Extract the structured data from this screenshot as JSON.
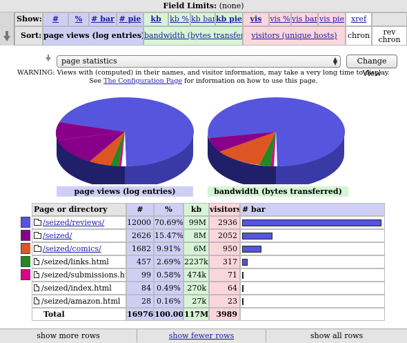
{
  "field_limits": {
    "label": "Field Limits:",
    "value": "(none)"
  },
  "show": {
    "label": "Show:",
    "hits": [
      "#",
      "%",
      "# bar",
      "# pie"
    ],
    "kb": [
      "kb",
      "kb %",
      "kb bar",
      "kb pie"
    ],
    "vis": [
      "vis",
      "vis %",
      "vis bar",
      "vis pie"
    ],
    "xref": "xref"
  },
  "sort": {
    "label": "Sort:",
    "page_views": "page views (log entries)",
    "bandwidth": "bandwidth (bytes transferred)",
    "visitors": "visitors (unique hosts)",
    "chron": "chron",
    "rev_chron_1": "rev",
    "rev_chron_2": "chron"
  },
  "report_select": {
    "value": "page statistics",
    "button": "Change View"
  },
  "warning": {
    "line1": "WARNING: Views with (computed) in their names, and visitor information, may take a very long time to display.",
    "line2_pre": "See ",
    "line2_link": "The Configuration Page",
    "line2_post": " for information on how to use this page."
  },
  "pies": {
    "left_label": "page views (log entries)",
    "right_label": "bandwidth (bytes transferred)"
  },
  "colors": {
    "blue": "#5555dd",
    "purple": "#880088",
    "orange": "#dd5522",
    "green": "#228822",
    "magenta": "#dd0088",
    "white": "#ffffff"
  },
  "table": {
    "headers": {
      "name": "Page or directory",
      "hits": "#",
      "pct": "%",
      "kb": "kb",
      "vis": "visitors",
      "bar": "# bar"
    },
    "rows": [
      {
        "name": "/seized/reviews/",
        "link": true,
        "icon": "folder-icon",
        "hits": "12000",
        "pct": "70.69%",
        "kb": "99M",
        "vis": "2936",
        "bar": 0.707,
        "color": "#5555dd"
      },
      {
        "name": "/seized/",
        "link": true,
        "icon": "folder-icon",
        "hits": "2626",
        "pct": "15.47%",
        "kb": "8M",
        "vis": "2052",
        "bar": 0.155,
        "color": "#880088"
      },
      {
        "name": "/seized/comics/",
        "link": true,
        "icon": "folder-icon",
        "hits": "1682",
        "pct": "9.91%",
        "kb": "6M",
        "vis": "950",
        "bar": 0.099,
        "color": "#dd5522"
      },
      {
        "name": "/seized/links.html",
        "link": false,
        "icon": "file-icon",
        "hits": "457",
        "pct": "2.69%",
        "kb": "2237k",
        "vis": "317",
        "bar": 0.027,
        "color": "#228822"
      },
      {
        "name": "/seized/submissions.html",
        "link": false,
        "icon": "file-icon",
        "hits": "99",
        "pct": "0.58%",
        "kb": "474k",
        "vis": "71",
        "bar": 0.006,
        "color": "#dd0088"
      },
      {
        "name": "/seized/index.html",
        "link": false,
        "icon": "file-icon",
        "hits": "84",
        "pct": "0.49%",
        "kb": "270k",
        "vis": "64",
        "bar": 0.005,
        "color": null
      },
      {
        "name": "/seized/amazon.html",
        "link": false,
        "icon": "file-icon",
        "hits": "28",
        "pct": "0.16%",
        "kb": "27k",
        "vis": "23",
        "bar": 0.002,
        "color": null
      }
    ],
    "total": {
      "label": "Total",
      "hits": "16976",
      "pct": "100.00",
      "kb": "117M",
      "vis": "3989"
    }
  },
  "bottom": {
    "more": "show more rows",
    "fewer": "show fewer rows",
    "all": "show all rows"
  }
}
